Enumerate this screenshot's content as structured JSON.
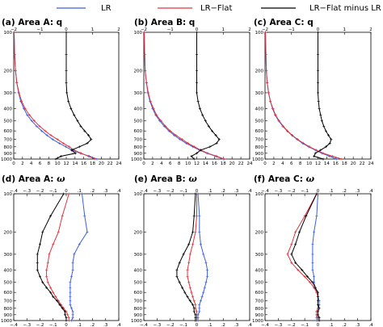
{
  "legend": [
    {
      "label": "LR",
      "color": "#3b5fe0"
    },
    {
      "label": "LR−Flat",
      "color": "#e0343c"
    },
    {
      "label": "LR−Flat minus LR",
      "color": "#000000"
    }
  ],
  "chart_data": [
    {
      "type": "line",
      "panel_label": "(a)",
      "title": "Area A: q",
      "title_symbol": "",
      "y_levels": [
        100,
        150,
        200,
        250,
        300,
        350,
        400,
        450,
        500,
        550,
        600,
        650,
        700,
        750,
        800,
        850,
        900,
        950,
        1000
      ],
      "y_axis": {
        "scale": "log",
        "inverted": true,
        "ticks": [
          100,
          200,
          300,
          400,
          500,
          600,
          700,
          800,
          900,
          1000
        ]
      },
      "x_bottom": {
        "range": [
          0,
          24
        ],
        "ticks": [
          0,
          2,
          4,
          6,
          8,
          10,
          12,
          14,
          16,
          18,
          20,
          22,
          24
        ]
      },
      "x_top": {
        "range": [
          -2,
          2
        ],
        "ticks": [
          -2,
          -1,
          0,
          1,
          2
        ]
      },
      "series": [
        {
          "name": "LR",
          "axis": "bottom",
          "color": "#3b5fe0",
          "values": [
            0.1,
            0.2,
            0.4,
            0.7,
            1.1,
            1.6,
            2.3,
            3.1,
            4.1,
            5.2,
            6.4,
            7.6,
            8.9,
            10.4,
            11.9,
            13.3,
            15.2,
            17.3,
            19.0
          ]
        },
        {
          "name": "LR−Flat",
          "axis": "bottom",
          "color": "#e0343c",
          "values": [
            0.1,
            0.2,
            0.4,
            0.7,
            1.2,
            1.8,
            2.6,
            3.6,
            4.7,
            5.9,
            7.2,
            8.5,
            10.0,
            11.3,
            12.7,
            13.8,
            15.4,
            17.1,
            18.6
          ]
        },
        {
          "name": "LR−Flat minus LR",
          "axis": "top",
          "color": "#000000",
          "values": [
            0.0,
            0.0,
            0.0,
            0.0,
            0.02,
            0.08,
            0.18,
            0.3,
            0.43,
            0.55,
            0.7,
            0.85,
            0.95,
            0.8,
            0.5,
            0.2,
            0.35,
            -0.2,
            -0.4
          ]
        }
      ]
    },
    {
      "type": "line",
      "panel_label": "(b)",
      "title": "Area B: q",
      "title_symbol": "",
      "y_levels": [
        100,
        150,
        200,
        250,
        300,
        350,
        400,
        450,
        500,
        550,
        600,
        650,
        700,
        750,
        800,
        850,
        900,
        950,
        1000
      ],
      "y_axis": {
        "scale": "log",
        "inverted": true,
        "ticks": [
          100,
          200,
          300,
          400,
          500,
          600,
          700,
          800,
          900,
          1000
        ]
      },
      "x_bottom": {
        "range": [
          0,
          24
        ],
        "ticks": [
          0,
          2,
          4,
          6,
          8,
          10,
          12,
          14,
          16,
          18,
          20,
          22,
          24
        ]
      },
      "x_top": {
        "range": [
          -2,
          2
        ],
        "ticks": [
          -2,
          -1,
          0,
          1,
          2
        ]
      },
      "series": [
        {
          "name": "LR",
          "axis": "bottom",
          "color": "#3b5fe0",
          "values": [
            0.1,
            0.2,
            0.3,
            0.6,
            0.9,
            1.4,
            2.0,
            2.7,
            3.6,
            4.6,
            5.7,
            6.9,
            8.2,
            9.6,
            11.1,
            12.6,
            14.3,
            16.3,
            18.0
          ]
        },
        {
          "name": "LR−Flat",
          "axis": "bottom",
          "color": "#e0343c",
          "values": [
            0.1,
            0.2,
            0.3,
            0.6,
            1.0,
            1.5,
            2.2,
            2.9,
            3.9,
            4.9,
            6.0,
            7.3,
            8.7,
            10.0,
            11.5,
            12.9,
            14.5,
            16.5,
            18.2
          ]
        },
        {
          "name": "LR−Flat minus LR",
          "axis": "top",
          "color": "#000000",
          "values": [
            0.0,
            0.0,
            0.0,
            0.0,
            0.0,
            0.05,
            0.12,
            0.22,
            0.33,
            0.45,
            0.58,
            0.72,
            0.85,
            0.75,
            0.5,
            0.15,
            0.0,
            -0.2,
            -0.1
          ]
        }
      ]
    },
    {
      "type": "line",
      "panel_label": "(c)",
      "title": "Area C: q",
      "title_symbol": "",
      "y_levels": [
        100,
        150,
        200,
        250,
        300,
        350,
        400,
        450,
        500,
        550,
        600,
        650,
        700,
        750,
        800,
        850,
        900,
        950,
        1000
      ],
      "y_axis": {
        "scale": "log",
        "inverted": true,
        "ticks": [
          100,
          200,
          300,
          400,
          500,
          600,
          700,
          800,
          900,
          1000
        ]
      },
      "x_bottom": {
        "range": [
          0,
          24
        ],
        "ticks": [
          0,
          2,
          4,
          6,
          8,
          10,
          12,
          14,
          16,
          18,
          20,
          22,
          24
        ]
      },
      "x_top": {
        "range": [
          -2,
          2
        ],
        "ticks": [
          -2,
          -1,
          0,
          1,
          2
        ]
      },
      "series": [
        {
          "name": "LR",
          "axis": "bottom",
          "color": "#3b5fe0",
          "values": [
            0.1,
            0.2,
            0.3,
            0.5,
            0.8,
            1.2,
            1.7,
            2.3,
            3.1,
            4.0,
            5.0,
            6.1,
            7.3,
            8.5,
            9.9,
            11.4,
            12.9,
            14.6,
            16.2
          ]
        },
        {
          "name": "LR−Flat",
          "axis": "bottom",
          "color": "#e0343c",
          "values": [
            0.1,
            0.2,
            0.3,
            0.5,
            0.8,
            1.2,
            1.8,
            2.4,
            3.2,
            4.1,
            5.1,
            6.2,
            7.4,
            8.7,
            10.1,
            11.6,
            13.2,
            15.3,
            17.4
          ]
        },
        {
          "name": "LR−Flat minus LR",
          "axis": "top",
          "color": "#000000",
          "values": [
            0.0,
            0.0,
            0.0,
            0.0,
            0.0,
            0.02,
            0.05,
            0.1,
            0.15,
            0.22,
            0.3,
            0.4,
            0.5,
            0.45,
            0.3,
            0.1,
            -0.1,
            -0.15,
            0.2
          ]
        }
      ]
    },
    {
      "type": "line",
      "panel_label": "(d)",
      "title": "Area A: ",
      "title_symbol": "ω",
      "y_levels": [
        100,
        150,
        200,
        250,
        300,
        350,
        400,
        450,
        500,
        550,
        600,
        650,
        700,
        750,
        800,
        850,
        900,
        950,
        1000
      ],
      "y_axis": {
        "scale": "log",
        "inverted": true,
        "ticks": [
          100,
          200,
          300,
          400,
          500,
          600,
          700,
          800,
          900,
          1000
        ]
      },
      "x_bottom": {
        "range": [
          -0.4,
          0.4
        ],
        "ticks": [
          -0.4,
          -0.3,
          -0.2,
          -0.1,
          0,
          0.1,
          0.2,
          0.3,
          0.4
        ]
      },
      "x_top": {
        "range": [
          -0.4,
          0.4
        ],
        "ticks": [
          -0.4,
          -0.3,
          -0.2,
          -0.1,
          0,
          0.1,
          0.2,
          0.3,
          0.4
        ]
      },
      "series": [
        {
          "name": "LR",
          "axis": "bottom",
          "color": "#3b5fe0",
          "values": [
            0.12,
            0.14,
            0.16,
            0.1,
            0.06,
            0.05,
            0.05,
            0.04,
            0.03,
            0.03,
            0.03,
            0.03,
            0.03,
            0.03,
            0.04,
            0.05,
            0.05,
            0.05,
            0.04
          ]
        },
        {
          "name": "LR−Flat",
          "axis": "bottom",
          "color": "#e0343c",
          "values": [
            0.02,
            -0.03,
            -0.06,
            -0.1,
            -0.13,
            -0.14,
            -0.15,
            -0.15,
            -0.14,
            -0.12,
            -0.1,
            -0.08,
            -0.06,
            -0.04,
            -0.02,
            0.0,
            0.01,
            0.02,
            0.02
          ]
        },
        {
          "name": "LR−Flat minus LR",
          "axis": "bottom",
          "color": "#000000",
          "values": [
            -0.02,
            -0.12,
            -0.18,
            -0.2,
            -0.22,
            -0.22,
            -0.22,
            -0.2,
            -0.18,
            -0.15,
            -0.12,
            -0.1,
            -0.07,
            -0.05,
            -0.03,
            -0.01,
            -0.01,
            0.0,
            0.0
          ]
        }
      ]
    },
    {
      "type": "line",
      "panel_label": "(e)",
      "title": "Area B: ",
      "title_symbol": "ω",
      "y_levels": [
        100,
        150,
        200,
        250,
        300,
        350,
        400,
        450,
        500,
        550,
        600,
        650,
        700,
        750,
        800,
        850,
        900,
        950,
        1000
      ],
      "y_axis": {
        "scale": "log",
        "inverted": true,
        "ticks": [
          100,
          200,
          300,
          400,
          500,
          600,
          700,
          800,
          900,
          1000
        ]
      },
      "x_bottom": {
        "range": [
          -0.4,
          0.4
        ],
        "ticks": [
          -0.4,
          -0.3,
          -0.2,
          -0.1,
          0,
          0.1,
          0.2,
          0.3,
          0.4
        ]
      },
      "x_top": {
        "range": [
          -0.4,
          0.4
        ],
        "ticks": [
          -0.4,
          -0.3,
          -0.2,
          -0.1,
          0,
          0.1,
          0.2,
          0.3,
          0.4
        ]
      },
      "series": [
        {
          "name": "LR",
          "axis": "bottom",
          "color": "#3b5fe0",
          "values": [
            0.01,
            0.02,
            0.02,
            0.03,
            0.05,
            0.07,
            0.08,
            0.08,
            0.07,
            0.06,
            0.05,
            0.04,
            0.03,
            0.02,
            0.02,
            0.02,
            0.01,
            0.01,
            0.01
          ]
        },
        {
          "name": "LR−Flat",
          "axis": "bottom",
          "color": "#e0343c",
          "values": [
            0.0,
            0.0,
            -0.01,
            -0.03,
            -0.05,
            -0.06,
            -0.07,
            -0.07,
            -0.06,
            -0.05,
            -0.04,
            -0.03,
            -0.02,
            -0.01,
            -0.01,
            0.0,
            0.0,
            0.0,
            0.0
          ]
        },
        {
          "name": "LR−Flat minus LR",
          "axis": "bottom",
          "color": "#000000",
          "values": [
            -0.01,
            -0.02,
            -0.03,
            -0.06,
            -0.1,
            -0.13,
            -0.15,
            -0.15,
            -0.13,
            -0.11,
            -0.09,
            -0.07,
            -0.05,
            -0.03,
            -0.02,
            -0.02,
            -0.01,
            -0.01,
            -0.01
          ]
        }
      ]
    },
    {
      "type": "line",
      "panel_label": "(f)",
      "title": "Area C: ",
      "title_symbol": "ω",
      "y_levels": [
        100,
        150,
        200,
        250,
        300,
        350,
        400,
        450,
        500,
        550,
        600,
        650,
        700,
        750,
        800,
        850,
        900,
        950,
        1000
      ],
      "y_axis": {
        "scale": "log",
        "inverted": true,
        "ticks": [
          100,
          200,
          300,
          400,
          500,
          600,
          700,
          800,
          900,
          1000
        ]
      },
      "x_bottom": {
        "range": [
          -0.4,
          0.4
        ],
        "ticks": [
          -0.4,
          -0.3,
          -0.2,
          -0.1,
          0,
          0.1,
          0.2,
          0.3,
          0.4
        ]
      },
      "x_top": {
        "range": [
          -0.4,
          0.4
        ],
        "ticks": [
          -0.4,
          -0.3,
          -0.2,
          -0.1,
          0,
          0.1,
          0.2,
          0.3,
          0.4
        ]
      },
      "series": [
        {
          "name": "LR",
          "axis": "bottom",
          "color": "#3b5fe0",
          "values": [
            0.0,
            -0.01,
            -0.03,
            -0.04,
            -0.04,
            -0.04,
            -0.04,
            -0.03,
            -0.03,
            -0.02,
            -0.01,
            0.0,
            0.01,
            0.01,
            0.0,
            -0.01,
            -0.01,
            -0.01,
            -0.01
          ]
        },
        {
          "name": "LR−Flat",
          "axis": "bottom",
          "color": "#e0343c",
          "values": [
            -0.01,
            -0.1,
            -0.17,
            -0.2,
            -0.23,
            -0.2,
            -0.15,
            -0.1,
            -0.06,
            -0.03,
            -0.01,
            0.0,
            0.0,
            0.0,
            0.0,
            -0.01,
            -0.01,
            0.0,
            0.0
          ]
        },
        {
          "name": "LR−Flat minus LR",
          "axis": "bottom",
          "color": "#000000",
          "values": [
            -0.01,
            -0.09,
            -0.14,
            -0.17,
            -0.2,
            -0.17,
            -0.12,
            -0.08,
            -0.04,
            -0.02,
            0.0,
            0.0,
            0.0,
            0.0,
            0.01,
            0.0,
            0.0,
            0.01,
            0.01
          ]
        }
      ]
    }
  ]
}
